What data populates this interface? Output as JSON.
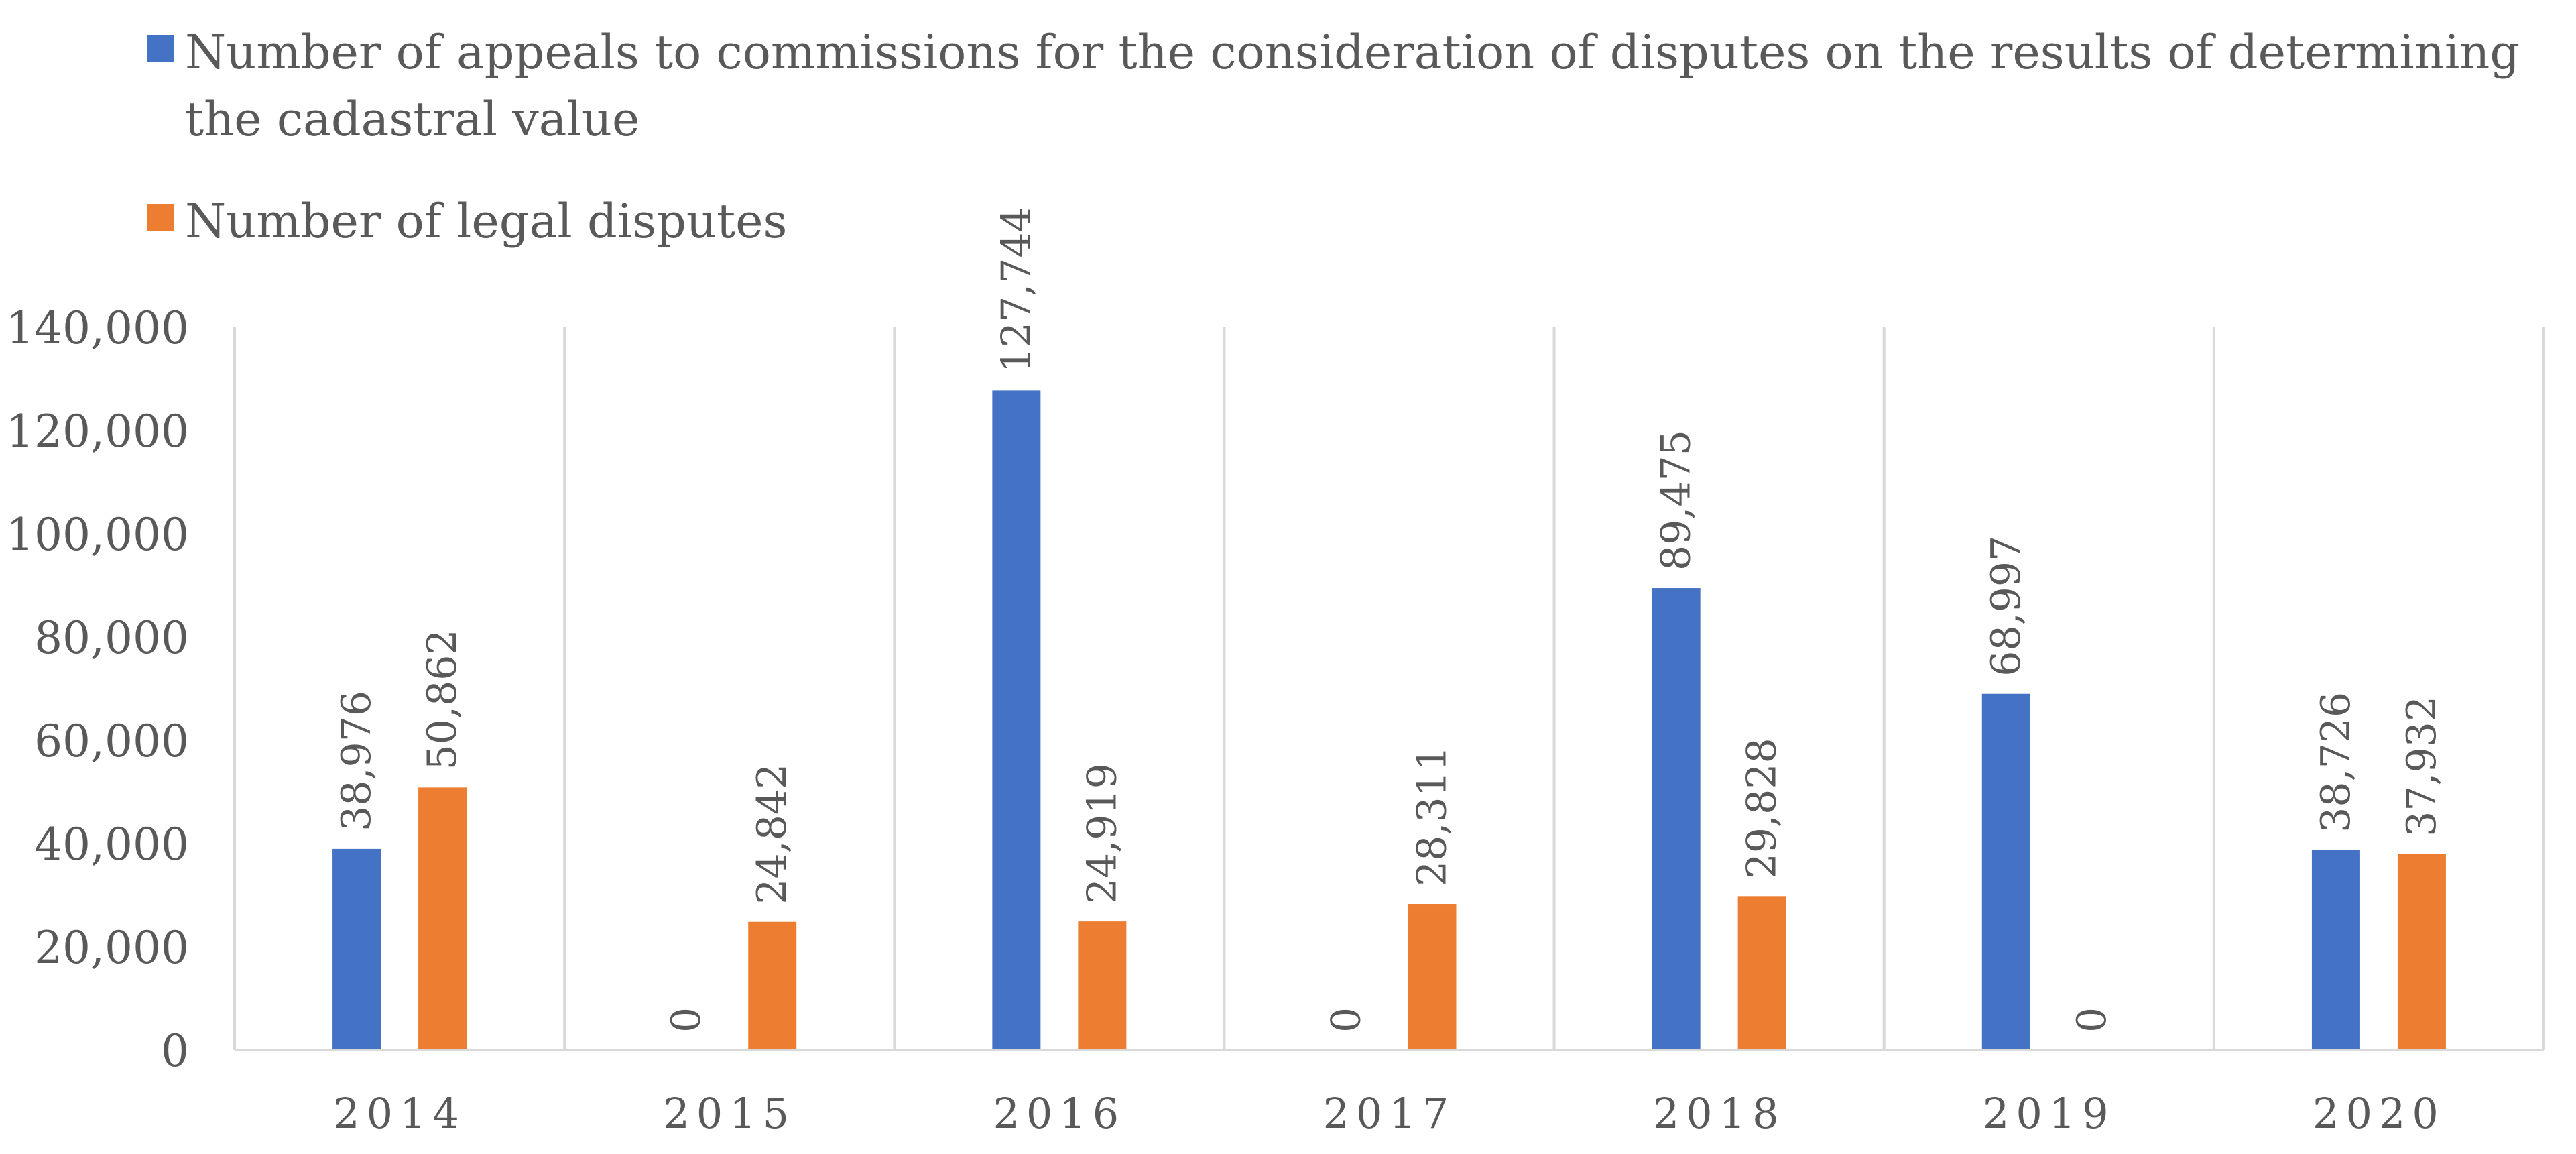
{
  "chart_data": {
    "type": "bar",
    "title": "",
    "xlabel": "",
    "ylabel": "",
    "categories": [
      "2014",
      "2015",
      "2016",
      "2017",
      "2018",
      "2019",
      "2020"
    ],
    "series": [
      {
        "name": "Number of appeals to commissions for the consideration of disputes on the results of determining the cadastral value",
        "color": "#4472C4",
        "values": [
          38976,
          0,
          127744,
          0,
          89475,
          68997,
          38726
        ],
        "labels": [
          "38,976",
          "0",
          "127,744",
          "0",
          "89,475",
          "68,997",
          "38,726"
        ]
      },
      {
        "name": "Number of legal disputes",
        "color": "#ED7D31",
        "values": [
          50862,
          24842,
          24919,
          28311,
          29828,
          0,
          37932
        ],
        "labels": [
          "50,862",
          "24,842",
          "24,919",
          "28,311",
          "29,828",
          "0",
          "37,932"
        ]
      }
    ],
    "ylim": [
      0,
      140000
    ],
    "yticks": [
      0,
      20000,
      40000,
      60000,
      80000,
      100000,
      120000,
      140000
    ],
    "ytick_labels": [
      "0",
      "20,000",
      "40,000",
      "60,000",
      "80,000",
      "100,000",
      "120,000",
      "140,000"
    ],
    "grid": "vertical-category-separators",
    "legend_position": "top-left"
  }
}
